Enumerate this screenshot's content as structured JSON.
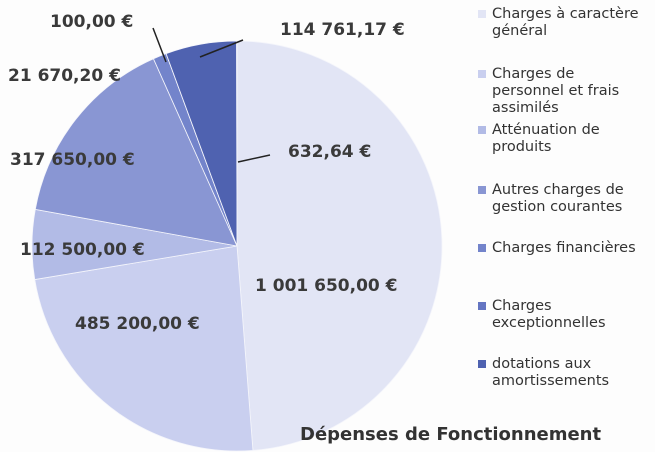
{
  "chart_data": {
    "type": "pie",
    "title": "Dépenses de Fonctionnement",
    "categories": [
      "Charges à caractère général",
      "Charges de personnel et frais assimilés",
      "Atténuation de produits",
      "Autres charges de gestion courantes",
      "Charges financières",
      "Charges exceptionnelles",
      "dotations aux amortissements",
      null
    ],
    "values": [
      1001650.0,
      485200.0,
      112500.0,
      317650.0,
      21670.2,
      100.0,
      114761.17,
      632.64
    ],
    "value_labels": [
      "1 001 650,00 €",
      "485 200,00 €",
      "112 500,00 €",
      "317 650,00 €",
      "21 670,20 €",
      "100,00 €",
      "114 761,17 €",
      "632,64 €"
    ],
    "colors": [
      "#e2e5f5",
      "#c9cfef",
      "#b2bbe6",
      "#8996d3",
      "#7384cb",
      "#6475c2",
      "#4f62b0",
      "#4256a4"
    ],
    "legend": "right"
  }
}
